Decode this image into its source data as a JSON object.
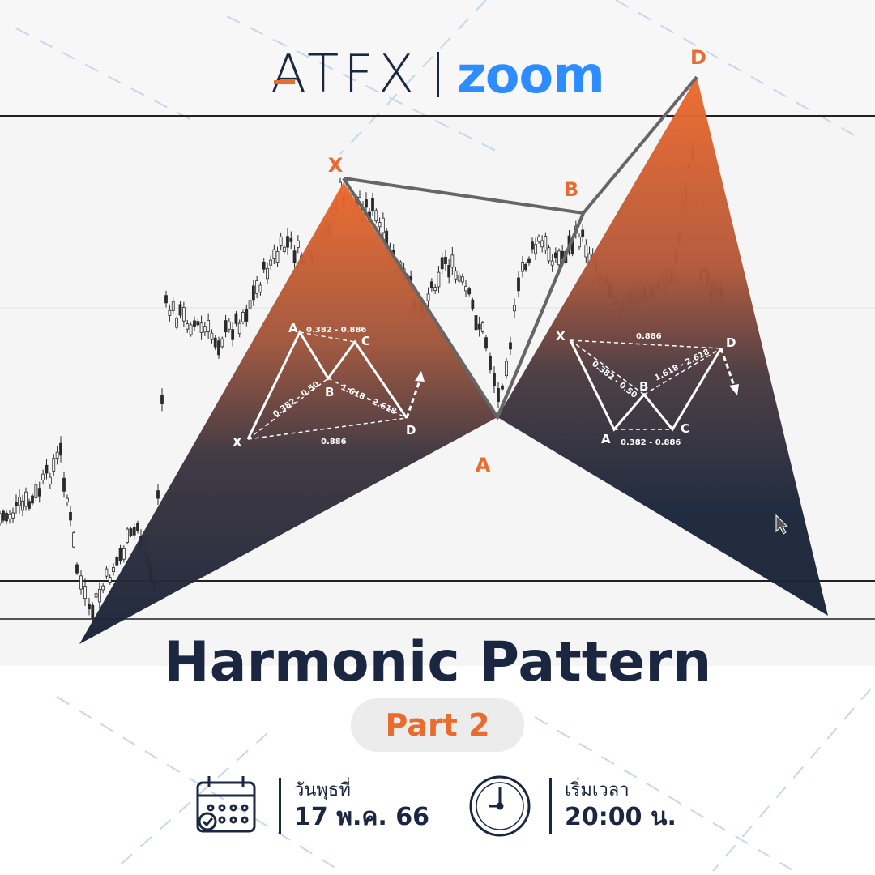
{
  "brand": {
    "left": "ATFX",
    "right": "zoom"
  },
  "title": "Harmonic Pattern",
  "subtitle": "Part 2",
  "pattern_points": {
    "x": "X",
    "a": "A",
    "b": "B",
    "d": "D"
  },
  "left_diagram": {
    "points": {
      "x": "X",
      "a": "A",
      "b": "B",
      "c": "C",
      "d": "D"
    },
    "ratios": {
      "ac": "0.382 - 0.886",
      "xb": "0.382 - 0.50",
      "bd": "1.618 - 2.618",
      "xd": "0.886"
    }
  },
  "right_diagram": {
    "points": {
      "x": "X",
      "a": "A",
      "b": "B",
      "c": "C",
      "d": "D"
    },
    "ratios": {
      "xd": "0.886",
      "xb": "0.382 - 0.50",
      "bd": "1.618 - 2.618",
      "ac": "0.382 - 0.886"
    }
  },
  "date": {
    "label": "วันพุธที่",
    "value": "17 พ.ค. 66",
    "icon": "calendar-icon"
  },
  "time": {
    "label": "เริ่มเวลา",
    "value": "20:00 น.",
    "icon": "clock-icon"
  },
  "colors": {
    "orange": "#ea6b2e",
    "navy": "#1b2640",
    "zoom_blue": "#2d8cff"
  }
}
